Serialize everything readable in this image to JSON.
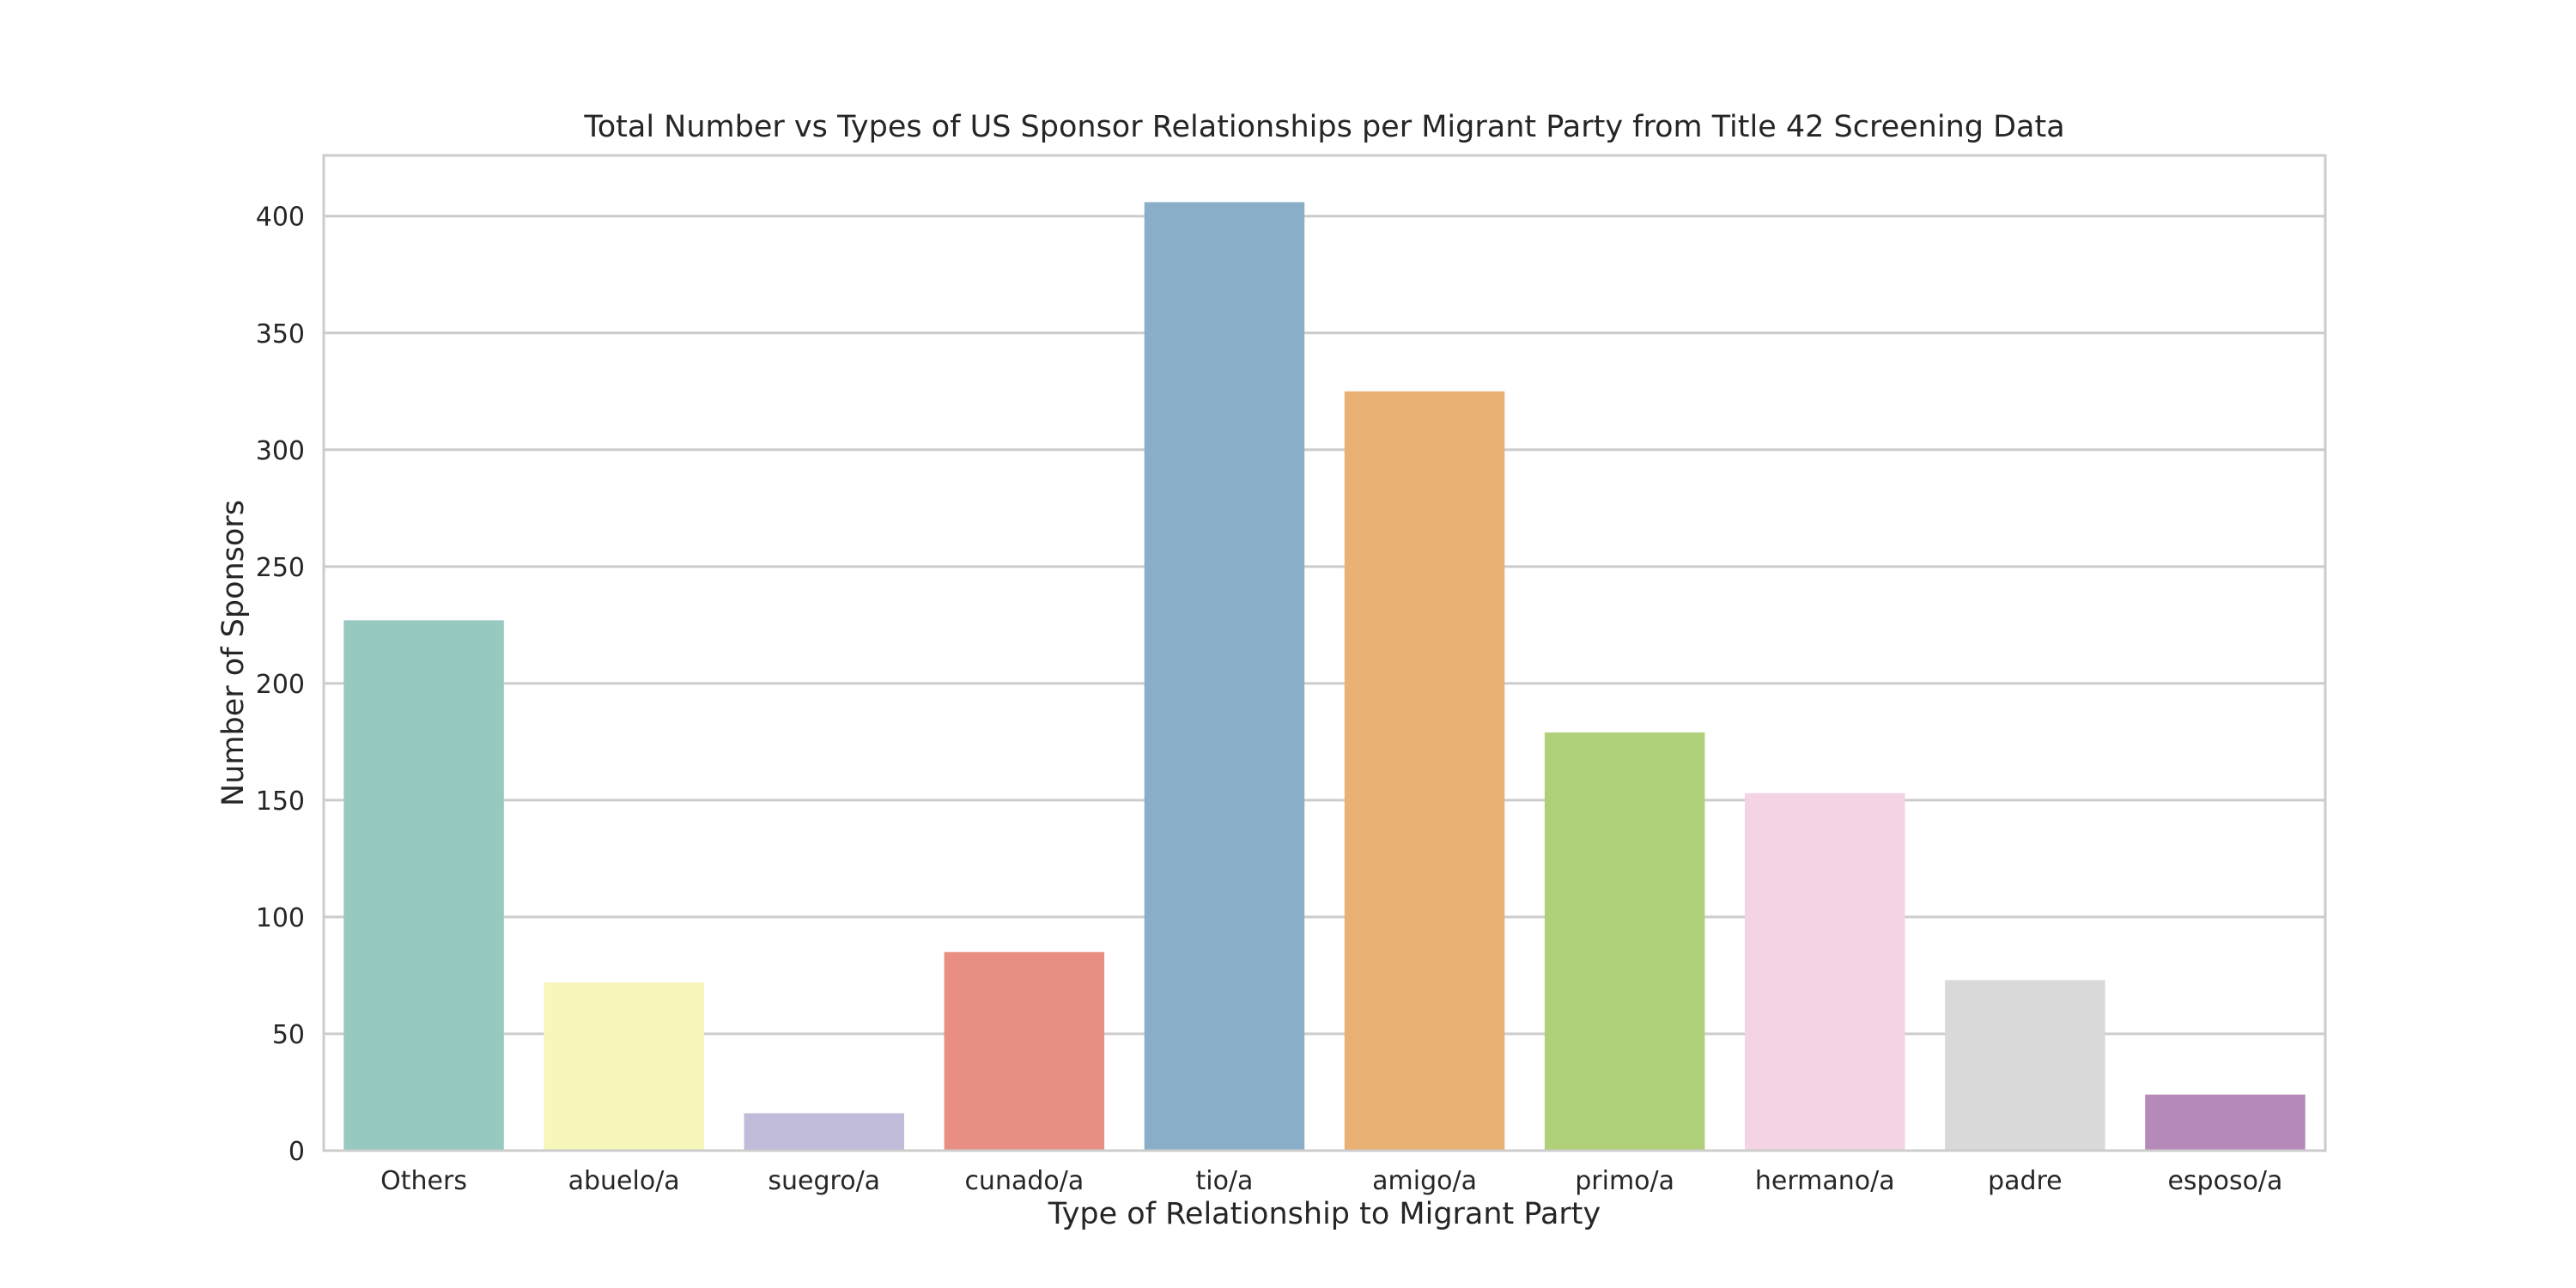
{
  "chart_data": {
    "type": "bar",
    "title": "Total Number vs Types of US Sponsor Relationships per Migrant Party from Title 42 Screening Data",
    "xlabel": "Type of Relationship to Migrant Party",
    "ylabel": "Number of Sponsors",
    "categories": [
      "Others",
      "abuelo/a",
      "suegro/a",
      "cunado/a",
      "tio/a",
      "amigo/a",
      "primo/a",
      "hermano/a",
      "padre",
      "esposo/a"
    ],
    "values": [
      227,
      72,
      16,
      85,
      406,
      325,
      179,
      153,
      73,
      24
    ],
    "colors": [
      "#96c9bf",
      "#f7f6bb",
      "#c0bbd8",
      "#e98e82",
      "#8aaec8",
      "#e9b174",
      "#afd079",
      "#f4d3e5",
      "#d9d9d9",
      "#b589b8"
    ],
    "ylim": [
      0,
      426
    ],
    "yticks": [
      0,
      50,
      100,
      150,
      200,
      250,
      300,
      350,
      400
    ],
    "grid": true,
    "legend": "none"
  }
}
